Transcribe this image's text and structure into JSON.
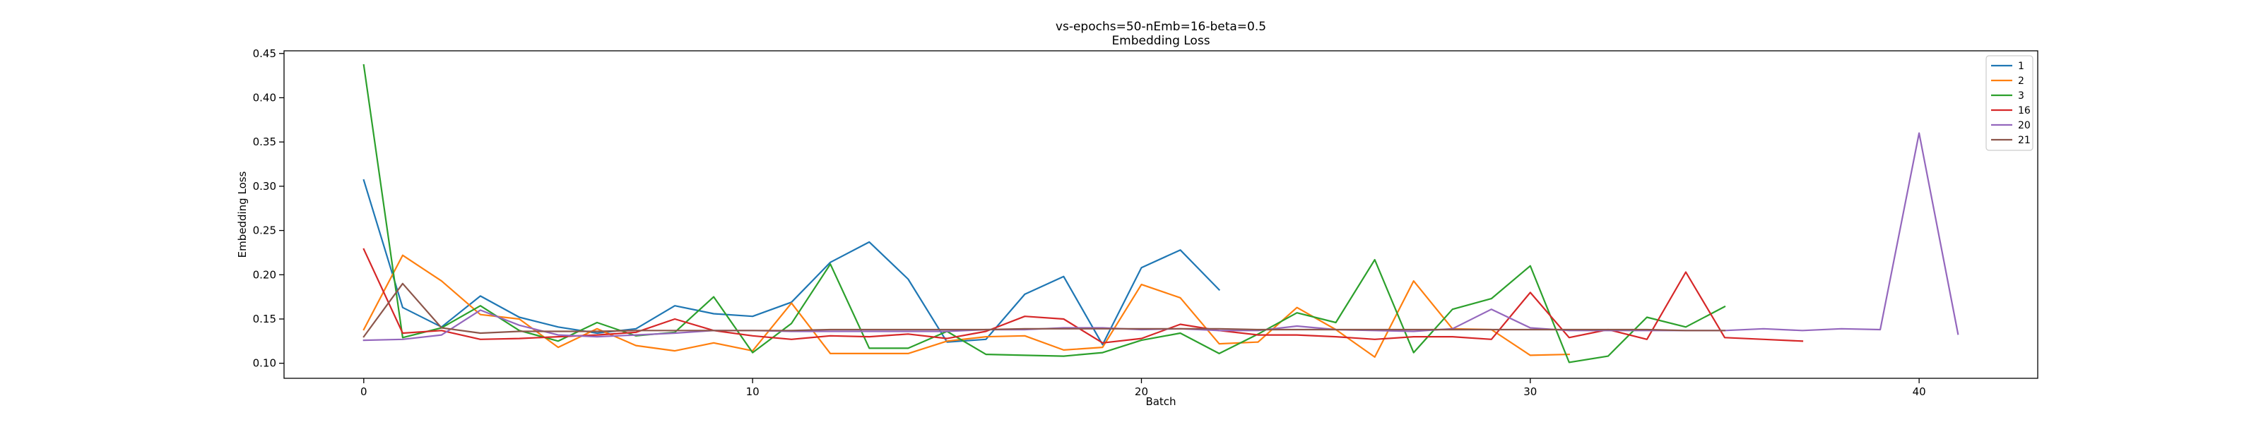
{
  "chart_data": {
    "type": "line",
    "title": "vs-epochs=50-nEmb=16-beta=0.5",
    "subtitle": "Embedding Loss",
    "xlabel": "Batch",
    "ylabel": "Embedding Loss",
    "xlim": [
      -2.05,
      43.05
    ],
    "ylim": [
      0.083,
      0.453
    ],
    "xticks": [
      0,
      10,
      20,
      30,
      40
    ],
    "yticks": [
      0.1,
      0.15,
      0.2,
      0.25,
      0.3,
      0.35,
      0.4,
      0.45
    ],
    "ytick_labels": [
      "0.10",
      "0.15",
      "0.20",
      "0.25",
      "0.30",
      "0.35",
      "0.40",
      "0.45"
    ],
    "grid": false,
    "legend_position": "top-right",
    "series": [
      {
        "name": "1",
        "color": "#1f77b4",
        "values": [
          0.307,
          0.163,
          0.141,
          0.176,
          0.152,
          0.141,
          0.134,
          0.139,
          0.165,
          0.156,
          0.153,
          0.169,
          0.214,
          0.237,
          0.195,
          0.124,
          0.127,
          0.178,
          0.198,
          0.121,
          0.208,
          0.228,
          0.183
        ]
      },
      {
        "name": "2",
        "color": "#ff7f0e",
        "values": [
          0.138,
          0.222,
          0.193,
          0.155,
          0.15,
          0.118,
          0.139,
          0.12,
          0.114,
          0.123,
          0.114,
          0.168,
          0.111,
          0.111,
          0.111,
          0.125,
          0.13,
          0.131,
          0.115,
          0.118,
          0.189,
          0.174,
          0.122,
          0.124,
          0.163,
          0.138,
          0.107,
          0.193,
          0.139,
          0.138,
          0.109,
          0.11
        ]
      },
      {
        "name": "3",
        "color": "#2ca02c",
        "values": [
          0.437,
          0.129,
          0.14,
          0.165,
          0.137,
          0.125,
          0.146,
          0.131,
          0.135,
          0.175,
          0.112,
          0.145,
          0.212,
          0.117,
          0.117,
          0.136,
          0.11,
          0.109,
          0.108,
          0.112,
          0.126,
          0.134,
          0.111,
          0.133,
          0.157,
          0.146,
          0.217,
          0.112,
          0.161,
          0.173,
          0.21,
          0.101,
          0.108,
          0.152,
          0.141,
          0.164
        ]
      },
      {
        "name": "16",
        "color": "#d62728",
        "values": [
          0.229,
          0.134,
          0.137,
          0.127,
          0.128,
          0.13,
          0.132,
          0.135,
          0.15,
          0.137,
          0.131,
          0.127,
          0.131,
          0.13,
          0.133,
          0.128,
          0.136,
          0.153,
          0.15,
          0.123,
          0.128,
          0.144,
          0.137,
          0.132,
          0.132,
          0.13,
          0.127,
          0.13,
          0.13,
          0.127,
          0.18,
          0.129,
          0.138,
          0.127,
          0.203,
          0.129,
          0.127,
          0.125
        ]
      },
      {
        "name": "20",
        "color": "#9467bd",
        "values": [
          0.126,
          0.127,
          0.132,
          0.16,
          0.143,
          0.132,
          0.13,
          0.132,
          0.134,
          0.137,
          0.137,
          0.136,
          0.136,
          0.136,
          0.136,
          0.136,
          0.138,
          0.138,
          0.14,
          0.14,
          0.138,
          0.139,
          0.137,
          0.137,
          0.142,
          0.138,
          0.137,
          0.136,
          0.139,
          0.161,
          0.14,
          0.137,
          0.137,
          0.137,
          0.137,
          0.137,
          0.139,
          0.137,
          0.139,
          0.138,
          0.36,
          0.133
        ]
      },
      {
        "name": "21",
        "color": "#8c564b",
        "values": [
          0.13,
          0.19,
          0.14,
          0.134,
          0.136,
          0.136,
          0.136,
          0.137,
          0.137,
          0.137,
          0.137,
          0.137,
          0.138,
          0.138,
          0.138,
          0.138,
          0.138,
          0.139,
          0.139,
          0.139,
          0.139,
          0.139,
          0.139,
          0.138,
          0.138,
          0.138,
          0.138,
          0.138,
          0.138,
          0.138,
          0.138,
          0.138,
          0.138,
          0.138,
          0.137,
          0.137
        ]
      }
    ]
  }
}
